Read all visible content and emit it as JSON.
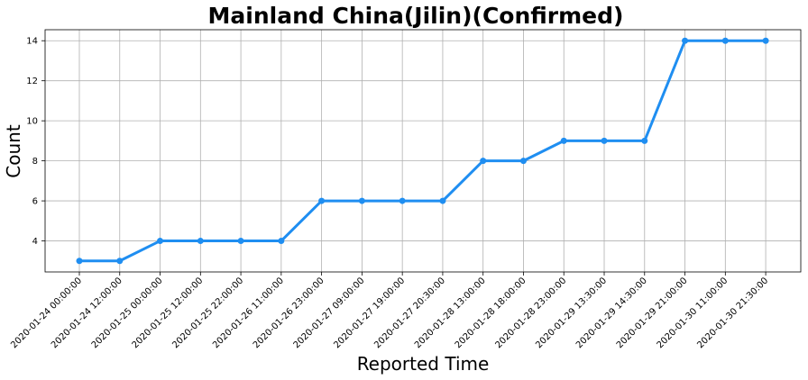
{
  "chart_data": {
    "type": "line",
    "title": "Mainland China(Jilin)(Confirmed)",
    "xlabel": "Reported Time",
    "ylabel": "Count",
    "categories": [
      "2020-01-24 00:00:00",
      "2020-01-24 12:00:00",
      "2020-01-25 00:00:00",
      "2020-01-25 12:00:00",
      "2020-01-25 22:00:00",
      "2020-01-26 11:00:00",
      "2020-01-26 23:00:00",
      "2020-01-27 09:00:00",
      "2020-01-27 19:00:00",
      "2020-01-27 20:30:00",
      "2020-01-28 13:00:00",
      "2020-01-28 18:00:00",
      "2020-01-28 23:00:00",
      "2020-01-29 13:30:00",
      "2020-01-29 14:30:00",
      "2020-01-29 21:00:00",
      "2020-01-30 11:00:00",
      "2020-01-30 21:30:00"
    ],
    "values": [
      3,
      3,
      4,
      4,
      4,
      4,
      6,
      6,
      6,
      6,
      8,
      8,
      9,
      9,
      9,
      14,
      14,
      14
    ],
    "ylim": [
      2.45,
      14.55
    ],
    "yticks": [
      4,
      6,
      8,
      10,
      12,
      14
    ],
    "grid": true,
    "line_color": "#1f8ef1"
  }
}
